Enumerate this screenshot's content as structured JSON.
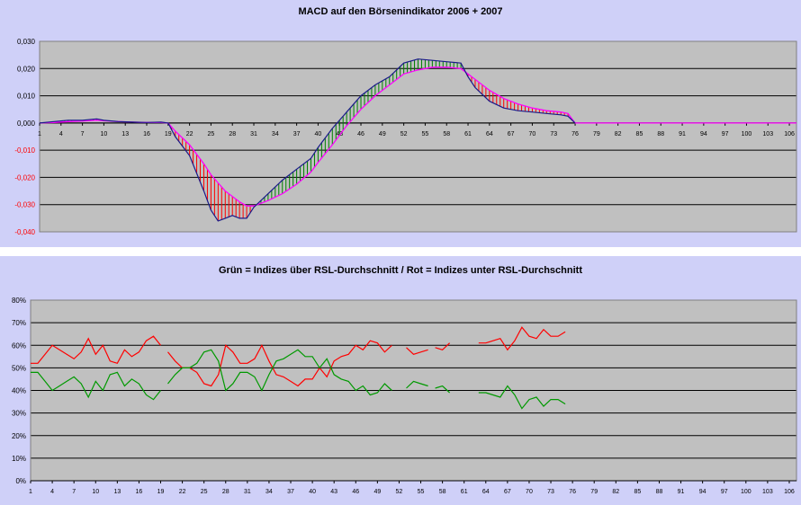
{
  "charts": {
    "macd": {
      "title": "MACD auf den Börsenindikator 2006 + 2007",
      "ytick_labels": [
        "0,030",
        "0,020",
        "0,010",
        "0,000",
        "-0,010",
        "-0,020",
        "-0,030",
        "-0,040"
      ],
      "xtick_labels": [
        "1",
        "4",
        "7",
        "10",
        "13",
        "16",
        "19",
        "22",
        "25",
        "28",
        "31",
        "34",
        "37",
        "40",
        "43",
        "46",
        "49",
        "52",
        "55",
        "58",
        "61",
        "64",
        "67",
        "70",
        "73",
        "76",
        "79",
        "82",
        "85",
        "88",
        "91",
        "94",
        "97",
        "100",
        "103",
        "106"
      ]
    },
    "rsl": {
      "title": "Grün = Indizes über RSL-Durchschnitt / Rot = Indizes unter RSL-Durchschnitt",
      "ytick_labels": [
        "80%",
        "70%",
        "60%",
        "50%",
        "40%",
        "30%",
        "20%",
        "10%",
        "0%"
      ],
      "xtick_labels": [
        "1",
        "4",
        "7",
        "10",
        "13",
        "16",
        "19",
        "22",
        "25",
        "28",
        "31",
        "34",
        "37",
        "40",
        "43",
        "46",
        "49",
        "52",
        "55",
        "58",
        "61",
        "64",
        "67",
        "70",
        "73",
        "76",
        "79",
        "82",
        "85",
        "88",
        "91",
        "94",
        "97",
        "100",
        "103",
        "106"
      ]
    }
  },
  "colors": {
    "panel_bg": "#cfd0f8",
    "plot_bg": "#c0c0c0",
    "macd_line": "#1a1a8a",
    "signal_line": "#ff00ff",
    "above_fill": "#008000",
    "below_fill": "#ff0000",
    "rsl_red": "#ff0000",
    "rsl_green": "#009900",
    "negative_tick": "#ff0000"
  },
  "chart_data": [
    {
      "type": "line",
      "title": "MACD auf den Börsenindikator 2006 + 2007",
      "xlabel": "",
      "ylabel": "",
      "ylim": [
        -0.04,
        0.03
      ],
      "xlim": [
        1,
        107
      ],
      "grid": true,
      "x_points": [
        1,
        3,
        5,
        7,
        9,
        10,
        12,
        14,
        16,
        18,
        19,
        20,
        22,
        24,
        25,
        26,
        27,
        28,
        29,
        30,
        31,
        33,
        35,
        37,
        39,
        40,
        42,
        44,
        46,
        48,
        50,
        52,
        54,
        56,
        58,
        60,
        61,
        62,
        64,
        66,
        68,
        70,
        72,
        74,
        75,
        76
      ],
      "series": [
        {
          "values": [
            0.0,
            0.0005,
            0.001,
            0.001,
            0.0015,
            0.001,
            0.0005,
            0.0003,
            0.0002,
            0.0003,
            0.0,
            -0.005,
            -0.012,
            -0.025,
            -0.032,
            -0.036,
            -0.035,
            -0.034,
            -0.035,
            -0.035,
            -0.031,
            -0.026,
            -0.021,
            -0.017,
            -0.013,
            -0.009,
            -0.002,
            0.004,
            0.01,
            0.014,
            0.017,
            0.022,
            0.0235,
            0.023,
            0.0225,
            0.022,
            0.017,
            0.013,
            0.008,
            0.0055,
            0.0045,
            0.004,
            0.0035,
            0.003,
            0.0025,
            0.0
          ]
        },
        {
          "values": [
            0.0,
            0.0002,
            0.0005,
            0.0007,
            0.001,
            0.0008,
            0.0005,
            0.0003,
            0.0002,
            0.0002,
            0.0,
            -0.003,
            -0.008,
            -0.015,
            -0.019,
            -0.022,
            -0.025,
            -0.027,
            -0.029,
            -0.0305,
            -0.0305,
            -0.0285,
            -0.026,
            -0.0225,
            -0.018,
            -0.0145,
            -0.008,
            -0.001,
            0.005,
            0.01,
            0.014,
            0.018,
            0.0195,
            0.0205,
            0.0205,
            0.02,
            0.018,
            0.016,
            0.012,
            0.009,
            0.007,
            0.0055,
            0.0045,
            0.004,
            0.0035,
            0.0
          ]
        }
      ],
      "flat_to": 107
    },
    {
      "type": "line",
      "title": "Grün = Indizes über RSL-Durchschnitt / Rot = Indizes unter RSL-Durchschnitt",
      "xlabel": "",
      "ylabel": "",
      "ylim": [
        0,
        80
      ],
      "xlim": [
        1,
        107
      ],
      "grid": true,
      "x": [
        1,
        2,
        3,
        4,
        5,
        6,
        7,
        8,
        9,
        10,
        11,
        12,
        13,
        14,
        15,
        16,
        17,
        18,
        19,
        20,
        21,
        22,
        23,
        24,
        25,
        26,
        27,
        28,
        29,
        30,
        31,
        32,
        33,
        34,
        35,
        36,
        37,
        38,
        39,
        40,
        41,
        42,
        43,
        44,
        45,
        46,
        47,
        48,
        49,
        50,
        51,
        52,
        53,
        54,
        55,
        56,
        57,
        58,
        59,
        60,
        61,
        62,
        63,
        64,
        65,
        66,
        67,
        68,
        69,
        70,
        71,
        72,
        73,
        74,
        75
      ],
      "series": [
        {
          "values": [
            52,
            52,
            56,
            60,
            58,
            56,
            54,
            57,
            63,
            56,
            60,
            53,
            52,
            58,
            55,
            57,
            62,
            64,
            60,
            57,
            53,
            50,
            50,
            48,
            43,
            42,
            47,
            60,
            57,
            52,
            52,
            54,
            60,
            53,
            47,
            46,
            44,
            42,
            45,
            45,
            50,
            46,
            53,
            55,
            56,
            60,
            58,
            62,
            61,
            57,
            60,
            60,
            59,
            56,
            57,
            58,
            59,
            58,
            61,
            61,
            60,
            60,
            61,
            61,
            62,
            63,
            58,
            62,
            68,
            64,
            63,
            67,
            64,
            64,
            66
          ]
        },
        {
          "values": [
            48,
            48,
            44,
            40,
            42,
            44,
            46,
            43,
            37,
            44,
            40,
            47,
            48,
            42,
            45,
            43,
            38,
            36,
            40,
            43,
            47,
            50,
            50,
            52,
            57,
            58,
            53,
            40,
            43,
            48,
            48,
            46,
            40,
            47,
            53,
            54,
            56,
            58,
            55,
            55,
            50,
            54,
            47,
            45,
            44,
            40,
            42,
            38,
            39,
            43,
            40,
            40,
            41,
            44,
            43,
            42,
            41,
            42,
            39,
            39,
            40,
            40,
            39,
            39,
            38,
            37,
            42,
            38,
            32,
            36,
            37,
            33,
            36,
            36,
            34
          ]
        }
      ],
      "gaps": [
        19,
        51,
        52,
        56,
        59,
        60,
        61,
        62
      ]
    }
  ]
}
